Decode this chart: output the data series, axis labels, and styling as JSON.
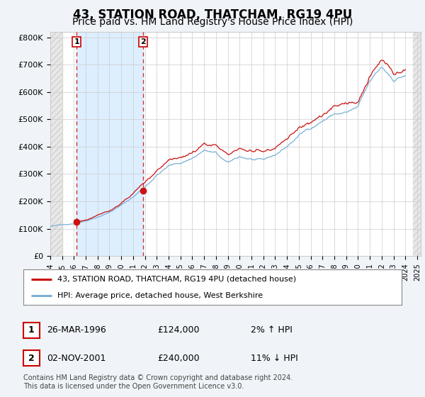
{
  "title": "43, STATION ROAD, THATCHAM, RG19 4PU",
  "subtitle": "Price paid vs. HM Land Registry's House Price Index (HPI)",
  "title_fontsize": 12,
  "subtitle_fontsize": 10,
  "hpi_color": "#7ab0d4",
  "sale_color": "#cc1111",
  "dashed_line_color": "#cc0000",
  "shade_between_color": "#ddeeff",
  "ylim": [
    0,
    820000
  ],
  "yticks": [
    0,
    100000,
    200000,
    300000,
    400000,
    500000,
    600000,
    700000,
    800000
  ],
  "ytick_labels": [
    "£0",
    "£100K",
    "£200K",
    "£300K",
    "£400K",
    "£500K",
    "£600K",
    "£700K",
    "£800K"
  ],
  "sale1_date": 1996.23,
  "sale1_price": 124000,
  "sale2_date": 2001.84,
  "sale2_price": 240000,
  "legend_sale_label": "43, STATION ROAD, THATCHAM, RG19 4PU (detached house)",
  "legend_hpi_label": "HPI: Average price, detached house, West Berkshire",
  "table_data": [
    {
      "num": "1",
      "date": "26-MAR-1996",
      "price": "£124,000",
      "change": "2% ↑ HPI"
    },
    {
      "num": "2",
      "date": "02-NOV-2001",
      "price": "£240,000",
      "change": "11% ↓ HPI"
    }
  ],
  "footnote": "Contains HM Land Registry data © Crown copyright and database right 2024.\nThis data is licensed under the Open Government Licence v3.0.",
  "bg_color": "#f0f4f8",
  "plot_bg_color": "#ffffff",
  "grid_color": "#cccccc",
  "hatch_color": "#cccccc"
}
